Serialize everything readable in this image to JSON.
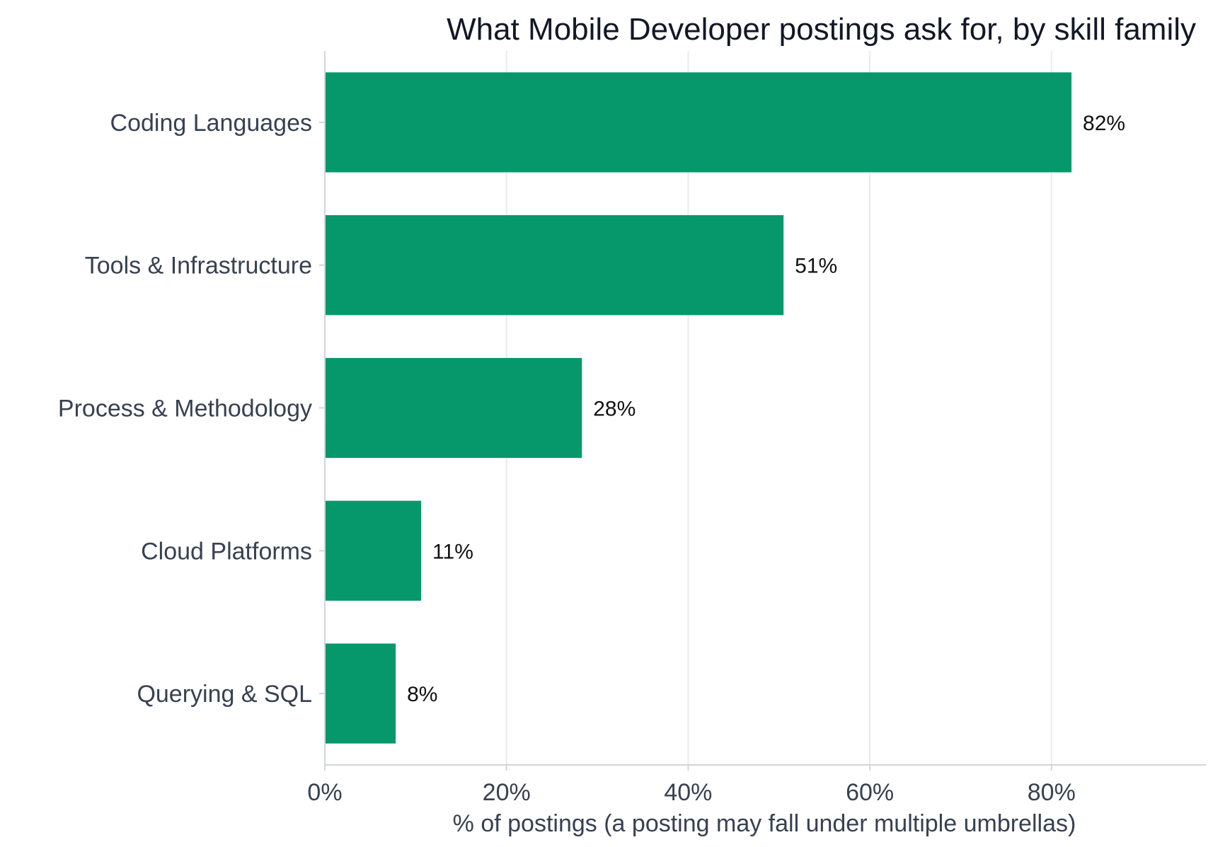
{
  "chart_data": {
    "type": "bar",
    "orientation": "horizontal",
    "title": "What Mobile Developer postings ask for, by skill family",
    "xlabel": "% of postings (a posting may fall under multiple umbrellas)",
    "ylabel": "",
    "categories": [
      "Coding Languages",
      "Tools & Infrastructure",
      "Process & Methodology",
      "Cloud Platforms",
      "Querying & SQL"
    ],
    "values": [
      82.2,
      50.5,
      28.3,
      10.6,
      7.8
    ],
    "data_labels": [
      "82%",
      "51%",
      "28%",
      "11%",
      "8%"
    ],
    "xlim": [
      0,
      97
    ],
    "xticks": [
      0,
      20,
      40,
      60,
      80
    ],
    "xtick_labels": [
      "0%",
      "20%",
      "40%",
      "60%",
      "80%"
    ],
    "grid": "vertical",
    "bar_color": "#06986a",
    "grid_color": "#ebebeb",
    "axis_color": "#d1d5db"
  }
}
